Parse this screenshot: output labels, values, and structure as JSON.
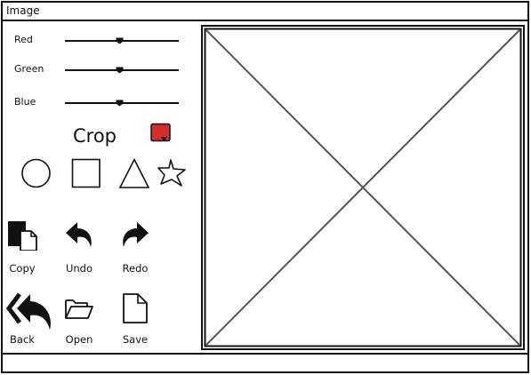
{
  "window": {
    "title": "Image"
  },
  "sliders": [
    {
      "label": "Red",
      "value": 0.48
    },
    {
      "label": "Green",
      "value": 0.48
    },
    {
      "label": "Blue",
      "value": 0.48
    }
  ],
  "crop": {
    "label": "Crop"
  },
  "color_picker": {
    "color": "#d62c2c"
  },
  "shapes": [
    {
      "icon": "circle-shape-icon"
    },
    {
      "icon": "square-shape-icon"
    },
    {
      "icon": "triangle-shape-icon"
    },
    {
      "icon": "star-shape-icon"
    }
  ],
  "tools": {
    "copy": {
      "label": "Copy",
      "icon": "copy-icon"
    },
    "undo": {
      "label": "Undo",
      "icon": "undo-icon"
    },
    "redo": {
      "label": "Redo",
      "icon": "redo-icon"
    },
    "back": {
      "label": "Back",
      "icon": "back-icon"
    },
    "open": {
      "label": "Open",
      "icon": "folder-open-icon"
    },
    "save": {
      "label": "Save",
      "icon": "file-icon"
    }
  },
  "image_area": {
    "icon": "image-placeholder-icon"
  }
}
